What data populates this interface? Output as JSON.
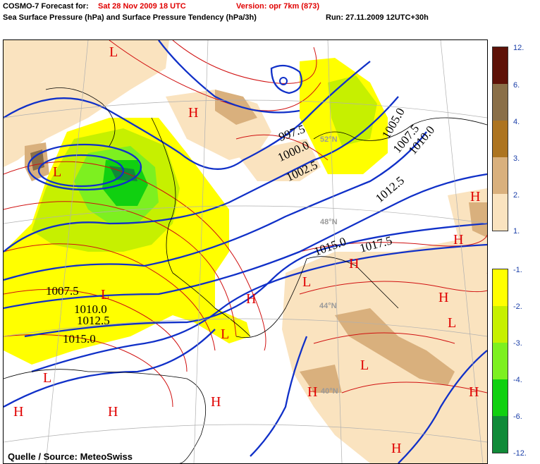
{
  "header": {
    "model": "COSMO-7 Forecast for:",
    "valid": "Sat 28 Nov 2009 18 UTC",
    "version": "Version: opr 7km (873)",
    "fields": "Sea Surface Pressure (hPa)  and  Surface Pressure Tendency (hPa/3h)",
    "run": "Run: 27.11.2009 12UTC+30h"
  },
  "map": {
    "source": "Quelle / Source: MeteoSwiss",
    "latitude_labels": [
      "52°N",
      "48°N",
      "44°N",
      "40°N"
    ],
    "isobar_labels": [
      "997.5",
      "1000.0",
      "1002.5",
      "1005.0",
      "1007.5",
      "1010.0",
      "1012.5",
      "1015.0",
      "1017.5",
      "1007.5",
      "1010.0",
      "1012.5",
      "1015.0"
    ],
    "pressure_centers": [
      "L",
      "H",
      "L",
      "H",
      "L",
      "L",
      "H",
      "L",
      "H",
      "L",
      "H",
      "L",
      "H",
      "H",
      "H",
      "H",
      "H",
      "H",
      "L",
      "H",
      "L"
    ]
  },
  "legend": {
    "rise_colors": [
      "#5e1208",
      "#8a6f48",
      "#ad7420",
      "#d9b07d",
      "#fae3bf"
    ],
    "fall_colors": [
      "#ffff00",
      "#c6f000",
      "#7df020",
      "#10d010",
      "#108a38"
    ],
    "rise_ticks": [
      "12.",
      "6.",
      "4.",
      "3.",
      "2.",
      "1."
    ],
    "fall_ticks": [
      "-1.",
      "-2.",
      "-3.",
      "-4.",
      "-6.",
      "-12."
    ]
  },
  "colors": {
    "isobar": "#1030c8",
    "tendency_contour": "#d01010",
    "title_accent": "#e00000"
  }
}
